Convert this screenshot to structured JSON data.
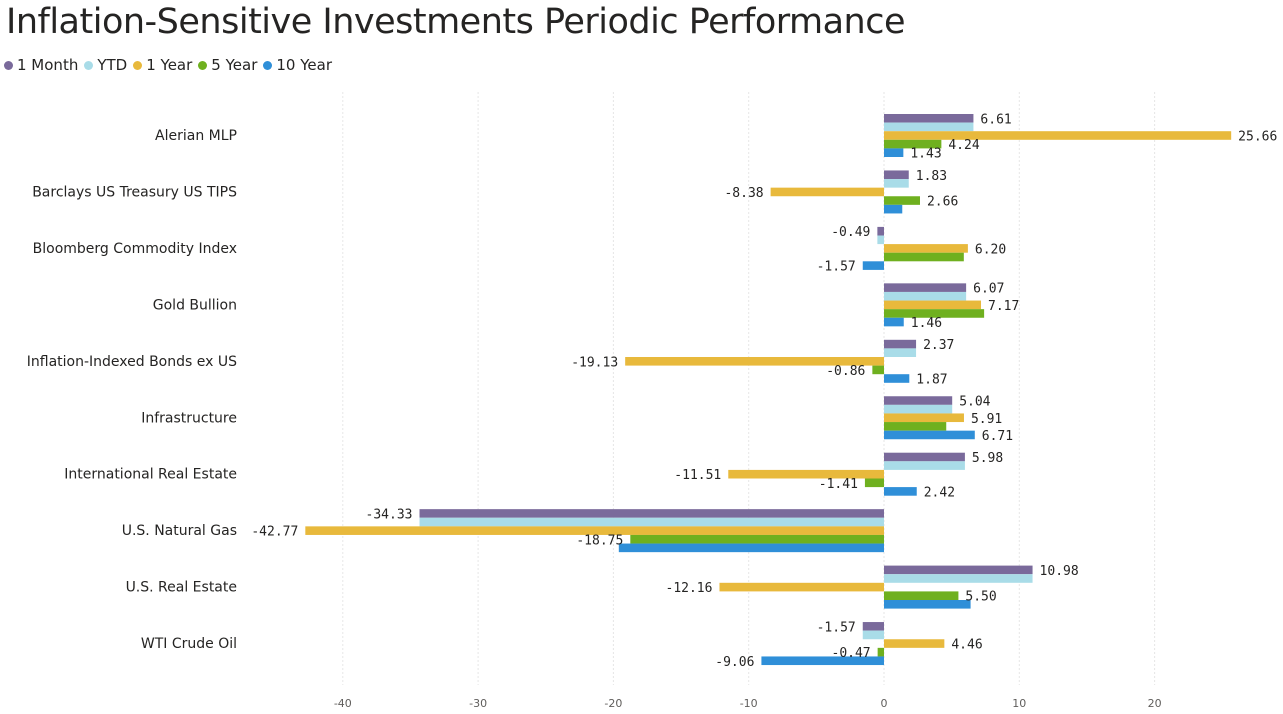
{
  "chart_data": {
    "type": "bar",
    "orientation": "horizontal",
    "title": "Inflation-Sensitive Investments Periodic Performance",
    "categories": [
      "Alerian MLP",
      "Barclays US Treasury US TIPS",
      "Bloomberg Commodity Index",
      "Gold Bullion",
      "Inflation-Indexed Bonds ex US",
      "Infrastructure",
      "International Real Estate",
      "U.S. Natural Gas",
      "U.S. Real Estate",
      "WTI Crude Oil"
    ],
    "series": [
      {
        "name": "1 Month",
        "color": "#7a6a9b",
        "values": [
          6.61,
          1.83,
          -0.49,
          6.07,
          2.37,
          5.04,
          5.98,
          -34.33,
          10.98,
          -1.57
        ],
        "labels": [
          "6.61",
          "1.83",
          "-0.49",
          "6.07",
          "2.37",
          "5.04",
          "5.98",
          "-34.33",
          "10.98",
          "-1.57"
        ]
      },
      {
        "name": "YTD",
        "color": "#a9dce8",
        "values": [
          6.61,
          1.83,
          -0.49,
          6.07,
          2.37,
          5.04,
          5.98,
          -34.33,
          10.98,
          -1.57
        ],
        "labels": [
          null,
          null,
          null,
          null,
          null,
          null,
          null,
          null,
          null,
          null
        ]
      },
      {
        "name": "1 Year",
        "color": "#e8b93c",
        "values": [
          25.66,
          -8.38,
          6.2,
          7.17,
          -19.13,
          5.91,
          -11.51,
          -42.77,
          -12.16,
          4.46
        ],
        "labels": [
          "25.66",
          "-8.38",
          "6.20",
          "7.17",
          "-19.13",
          "5.91",
          "-11.51",
          "-42.77",
          "-12.16",
          "4.46"
        ]
      },
      {
        "name": "5 Year",
        "color": "#6fb01f",
        "values": [
          4.24,
          2.66,
          5.9,
          7.4,
          -0.86,
          4.6,
          -1.41,
          -18.75,
          5.5,
          -0.47
        ],
        "labels": [
          "4.24",
          "2.66",
          null,
          null,
          "-0.86",
          null,
          "-1.41",
          "-18.75",
          "5.50",
          "-0.47"
        ]
      },
      {
        "name": "10 Year",
        "color": "#2f8fd8",
        "values": [
          1.43,
          1.35,
          -1.57,
          1.46,
          1.87,
          6.71,
          2.42,
          -19.6,
          6.4,
          -9.06
        ],
        "labels": [
          "1.43",
          null,
          "-1.57",
          "1.46",
          "1.87",
          "6.71",
          "2.42",
          null,
          null,
          "-9.06"
        ]
      }
    ],
    "xlim": [
      -43.5,
      28.5
    ],
    "xticks": [
      -40,
      -30,
      -20,
      -10,
      0,
      10,
      20
    ],
    "xtick_labels": [
      "-40",
      "-30",
      "-20",
      "-10",
      "0",
      "10",
      "20"
    ],
    "xlabel": "",
    "ylabel": "",
    "grid": true,
    "legend_position": "top-left"
  }
}
